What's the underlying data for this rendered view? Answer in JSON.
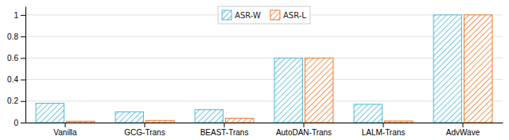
{
  "chart_data": {
    "type": "bar",
    "categories": [
      "Vanilla",
      "GCG-Trans",
      "BEAST-Trans",
      "AutoDAN-Trans",
      "LALM-Trans",
      "AdvWave"
    ],
    "series": [
      {
        "name": "ASR-W",
        "color": "#4db8d4",
        "values": [
          0.18,
          0.1,
          0.12,
          0.6,
          0.17,
          1.0
        ]
      },
      {
        "name": "ASR-L",
        "color": "#f07828",
        "values": [
          0.013,
          0.02,
          0.04,
          0.6,
          0.015,
          1.0
        ]
      }
    ],
    "ylim": [
      0,
      1.08
    ],
    "yticks": [
      0,
      0.2,
      0.4,
      0.6,
      0.8,
      1
    ],
    "grid": true,
    "legend": "upper center"
  }
}
